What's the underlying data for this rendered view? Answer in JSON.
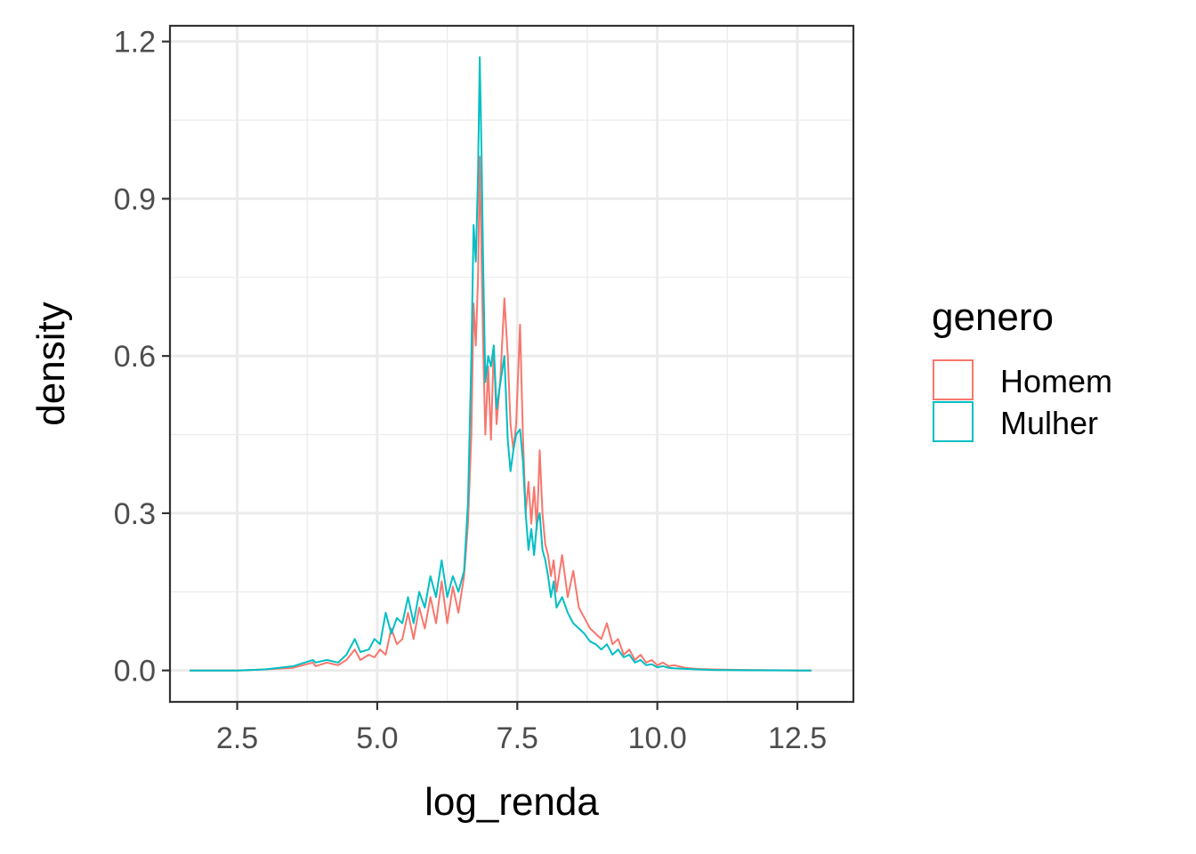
{
  "chart_data": {
    "type": "line",
    "title": "",
    "xlabel": "log_renda",
    "ylabel": "density",
    "xlim": [
      1.3,
      13.5
    ],
    "ylim": [
      -0.06,
      1.23
    ],
    "xticks": [
      2.5,
      5.0,
      7.5,
      10.0,
      12.5
    ],
    "xtick_labels": [
      "2.5",
      "5.0",
      "7.5",
      "10.0",
      "12.5"
    ],
    "yticks": [
      0.0,
      0.3,
      0.6,
      0.9,
      1.2
    ],
    "ytick_labels": [
      "0.0",
      "0.3",
      "0.6",
      "0.9",
      "1.2"
    ],
    "grid": true,
    "legend": {
      "title": "genero",
      "position": "right"
    },
    "series": [
      {
        "name": "Homem",
        "color": "#F8766D",
        "x": [
          1.65,
          2.5,
          3.0,
          3.5,
          3.85,
          3.9,
          4.1,
          4.3,
          4.45,
          4.6,
          4.7,
          4.85,
          4.95,
          5.05,
          5.15,
          5.25,
          5.35,
          5.45,
          5.55,
          5.65,
          5.75,
          5.85,
          5.95,
          6.05,
          6.15,
          6.25,
          6.35,
          6.45,
          6.55,
          6.62,
          6.68,
          6.72,
          6.76,
          6.8,
          6.83,
          6.86,
          6.89,
          6.93,
          6.98,
          7.03,
          7.08,
          7.13,
          7.2,
          7.27,
          7.33,
          7.38,
          7.43,
          7.48,
          7.55,
          7.6,
          7.65,
          7.7,
          7.75,
          7.8,
          7.85,
          7.9,
          7.95,
          8.0,
          8.05,
          8.1,
          8.15,
          8.2,
          8.3,
          8.4,
          8.5,
          8.6,
          8.7,
          8.8,
          8.9,
          9.0,
          9.1,
          9.2,
          9.3,
          9.4,
          9.5,
          9.6,
          9.7,
          9.8,
          9.9,
          10.0,
          10.1,
          10.2,
          10.3,
          10.5,
          10.7,
          11.0,
          11.5,
          12.0,
          12.5,
          12.75
        ],
        "y": [
          0.0,
          0.0,
          0.002,
          0.005,
          0.015,
          0.008,
          0.015,
          0.01,
          0.02,
          0.04,
          0.02,
          0.03,
          0.025,
          0.04,
          0.03,
          0.08,
          0.05,
          0.06,
          0.11,
          0.06,
          0.12,
          0.08,
          0.14,
          0.09,
          0.17,
          0.09,
          0.16,
          0.11,
          0.18,
          0.28,
          0.45,
          0.7,
          0.62,
          0.75,
          0.98,
          0.8,
          0.62,
          0.45,
          0.58,
          0.44,
          0.62,
          0.47,
          0.56,
          0.71,
          0.6,
          0.47,
          0.42,
          0.47,
          0.66,
          0.45,
          0.3,
          0.36,
          0.28,
          0.35,
          0.27,
          0.42,
          0.3,
          0.24,
          0.22,
          0.18,
          0.21,
          0.15,
          0.22,
          0.14,
          0.19,
          0.12,
          0.1,
          0.08,
          0.07,
          0.06,
          0.09,
          0.05,
          0.06,
          0.03,
          0.04,
          0.02,
          0.03,
          0.015,
          0.02,
          0.01,
          0.015,
          0.008,
          0.01,
          0.005,
          0.003,
          0.002,
          0.001,
          0.0005,
          0.0,
          0.0
        ]
      },
      {
        "name": "Mulher",
        "color": "#00BFC4",
        "x": [
          1.65,
          2.5,
          3.0,
          3.5,
          3.85,
          3.9,
          4.1,
          4.3,
          4.45,
          4.6,
          4.7,
          4.85,
          4.95,
          5.05,
          5.15,
          5.25,
          5.35,
          5.45,
          5.55,
          5.65,
          5.75,
          5.85,
          5.95,
          6.05,
          6.15,
          6.25,
          6.35,
          6.45,
          6.55,
          6.62,
          6.68,
          6.72,
          6.76,
          6.8,
          6.83,
          6.86,
          6.89,
          6.93,
          6.98,
          7.03,
          7.08,
          7.13,
          7.2,
          7.27,
          7.33,
          7.38,
          7.43,
          7.48,
          7.55,
          7.6,
          7.65,
          7.7,
          7.75,
          7.8,
          7.85,
          7.9,
          7.95,
          8.0,
          8.05,
          8.1,
          8.15,
          8.2,
          8.3,
          8.4,
          8.5,
          8.6,
          8.7,
          8.8,
          8.9,
          9.0,
          9.1,
          9.2,
          9.3,
          9.4,
          9.5,
          9.6,
          9.7,
          9.8,
          9.9,
          10.0,
          10.1,
          10.2,
          10.3,
          10.5,
          10.7,
          11.0,
          11.5,
          12.0,
          12.5,
          12.75
        ],
        "y": [
          0.0,
          0.0,
          0.002,
          0.008,
          0.02,
          0.015,
          0.02,
          0.015,
          0.03,
          0.06,
          0.035,
          0.04,
          0.06,
          0.05,
          0.11,
          0.07,
          0.1,
          0.09,
          0.14,
          0.09,
          0.15,
          0.12,
          0.18,
          0.14,
          0.21,
          0.14,
          0.18,
          0.15,
          0.19,
          0.32,
          0.6,
          0.85,
          0.78,
          0.95,
          1.17,
          1.0,
          0.78,
          0.55,
          0.6,
          0.58,
          0.62,
          0.5,
          0.55,
          0.6,
          0.44,
          0.38,
          0.42,
          0.45,
          0.46,
          0.4,
          0.3,
          0.23,
          0.27,
          0.22,
          0.28,
          0.3,
          0.23,
          0.21,
          0.18,
          0.14,
          0.17,
          0.12,
          0.14,
          0.11,
          0.09,
          0.08,
          0.07,
          0.055,
          0.05,
          0.04,
          0.05,
          0.03,
          0.04,
          0.025,
          0.03,
          0.015,
          0.02,
          0.01,
          0.012,
          0.006,
          0.008,
          0.005,
          0.004,
          0.003,
          0.002,
          0.001,
          0.0005,
          0.0002,
          0.0,
          0.0
        ]
      }
    ]
  }
}
